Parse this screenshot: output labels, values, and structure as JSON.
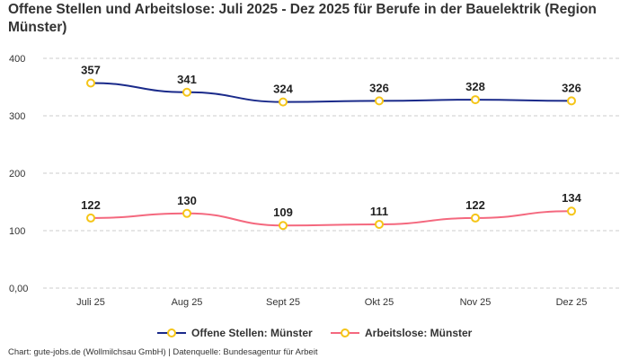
{
  "chart_data": {
    "type": "line",
    "title": "Offene Stellen und Arbeitslose: Juli 2025 - Dez 2025 für Berufe in der Bauelektrik (Region Münster)",
    "categories": [
      "Juli 25",
      "Aug 25",
      "Sept 25",
      "Okt 25",
      "Nov 25",
      "Dez 25"
    ],
    "series": [
      {
        "name": "Offene Stellen: Münster",
        "values": [
          357,
          341,
          324,
          326,
          328,
          326
        ],
        "color": "#1a2a8a"
      },
      {
        "name": "Arbeitslose: Münster",
        "values": [
          122,
          130,
          109,
          111,
          122,
          134
        ],
        "color": "#f4687e"
      }
    ],
    "marker_color": "#f5c518",
    "ylim": [
      0,
      400
    ],
    "yticks": [
      "0,00",
      "100",
      "200",
      "300",
      "400"
    ],
    "ytick_values": [
      0,
      100,
      200,
      300,
      400
    ],
    "grid": true,
    "legend": "bottom",
    "xlabel": "",
    "ylabel": ""
  },
  "footer": "Chart: gute-jobs.de (Wollmilchsau GmbH) | Datenquelle: Bundesagentur für Arbeit"
}
